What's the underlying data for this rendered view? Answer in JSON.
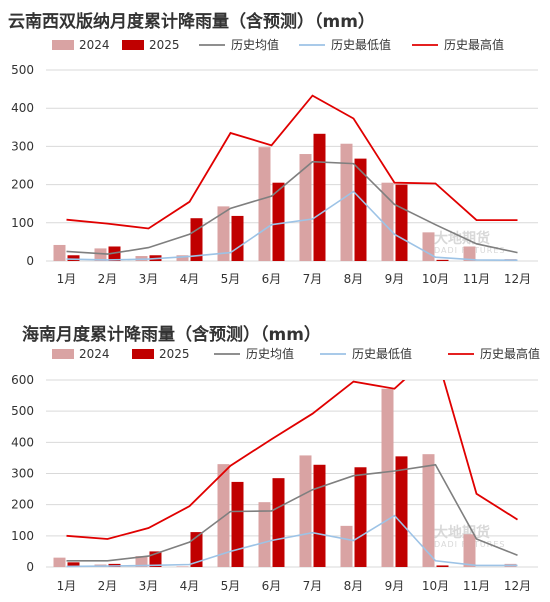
{
  "watermark": {
    "name": "大地期货",
    "sub": "DADI FUTURES"
  },
  "colors": {
    "s2024": "#d9a3a3",
    "s2025": "#c00000",
    "avg": "#7f7f7f",
    "min": "#9dc3e6",
    "max": "#e00000"
  },
  "chart_data": [
    {
      "type": "bar",
      "title": "云南西双版纳月度累计降雨量（含预测）（mm）",
      "categories": [
        "1月",
        "2月",
        "3月",
        "4月",
        "5月",
        "6月",
        "7月",
        "8月",
        "9月",
        "10月",
        "11月",
        "12月"
      ],
      "ylim": [
        0,
        500
      ],
      "yticks": [
        0,
        100,
        200,
        300,
        400,
        500
      ],
      "yticklabels": [
        "0",
        "100",
        "200",
        "300",
        "400",
        "500"
      ],
      "series": [
        {
          "name": "2024",
          "kind": "bar",
          "color": "#d9a3a3",
          "values": [
            42,
            33,
            13,
            15,
            143,
            298,
            280,
            307,
            205,
            75,
            38,
            5
          ]
        },
        {
          "name": "2025",
          "kind": "bar",
          "color": "#c00000",
          "values": [
            15,
            38,
            15,
            112,
            118,
            205,
            333,
            268,
            200,
            3,
            null,
            null
          ]
        },
        {
          "name": "历史均值",
          "kind": "line",
          "color": "#7f7f7f",
          "values": [
            25,
            18,
            35,
            70,
            138,
            170,
            260,
            255,
            148,
            95,
            45,
            22
          ]
        },
        {
          "name": "历史最低值",
          "kind": "line",
          "color": "#9dc3e6",
          "values": [
            5,
            3,
            5,
            12,
            22,
            95,
            110,
            182,
            70,
            10,
            3,
            2
          ]
        },
        {
          "name": "历史最高值",
          "kind": "line",
          "color": "#e00000",
          "values": [
            108,
            98,
            85,
            155,
            335,
            303,
            433,
            373,
            205,
            203,
            107,
            107
          ]
        }
      ]
    },
    {
      "type": "bar",
      "title": "海南月度累计降雨量（含预测）（mm）",
      "categories": [
        "1月",
        "2月",
        "3月",
        "4月",
        "5月",
        "6月",
        "7月",
        "8月",
        "9月",
        "10月",
        "11月",
        "12月"
      ],
      "ylim": [
        0,
        600
      ],
      "yticks": [
        0,
        100,
        200,
        300,
        400,
        500,
        600
      ],
      "yticklabels": [
        "0",
        "100",
        "200",
        "300",
        "400",
        "500",
        "600"
      ],
      "series": [
        {
          "name": "2024",
          "kind": "bar",
          "color": "#d9a3a3",
          "values": [
            30,
            8,
            35,
            2,
            330,
            208,
            358,
            132,
            572,
            362,
            105,
            10
          ]
        },
        {
          "name": "2025",
          "kind": "bar",
          "color": "#c00000",
          "values": [
            15,
            10,
            50,
            112,
            273,
            285,
            328,
            320,
            355,
            5,
            null,
            null
          ]
        },
        {
          "name": "历史均值",
          "kind": "line",
          "color": "#7f7f7f",
          "values": [
            20,
            20,
            35,
            80,
            178,
            180,
            248,
            293,
            308,
            328,
            90,
            38
          ]
        },
        {
          "name": "历史最低值",
          "kind": "line",
          "color": "#9dc3e6",
          "values": [
            2,
            3,
            5,
            8,
            50,
            85,
            110,
            85,
            165,
            20,
            5,
            5
          ]
        },
        {
          "name": "历史最高值",
          "kind": "line",
          "color": "#e00000",
          "values": [
            100,
            90,
            125,
            195,
            325,
            410,
            492,
            595,
            572,
            692,
            235,
            152
          ]
        }
      ]
    }
  ]
}
